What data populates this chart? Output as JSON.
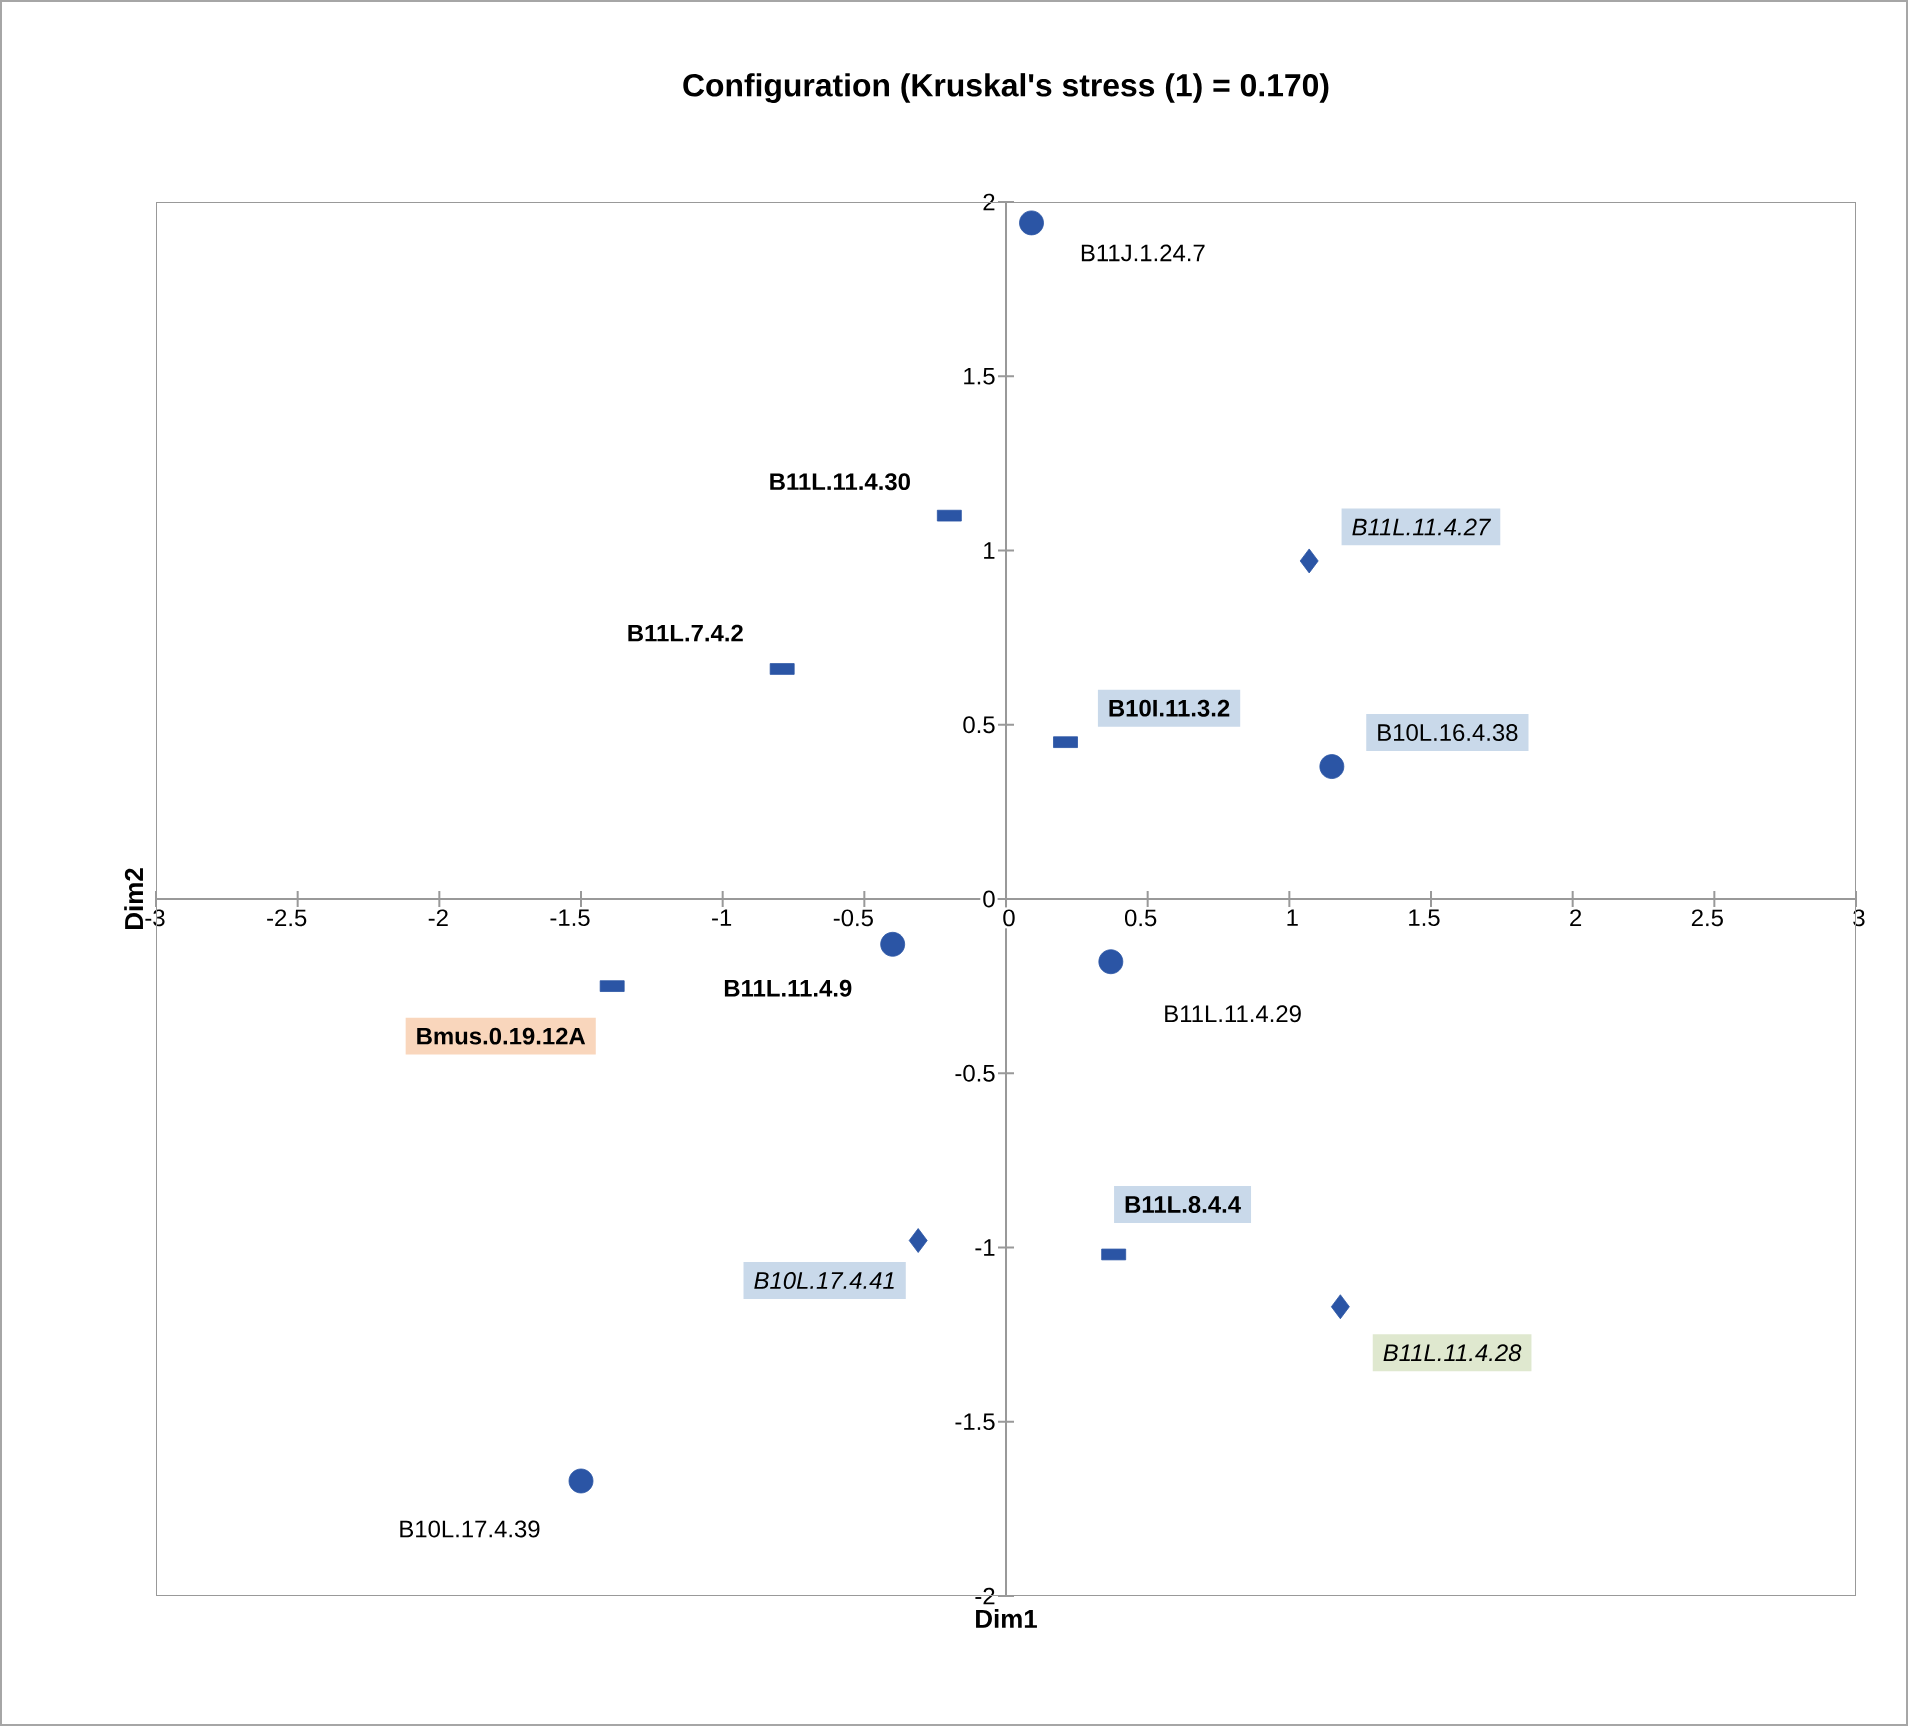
{
  "chart_data": {
    "type": "scatter",
    "title": "Configuration (Kruskal's stress (1) = 0.170)",
    "xlabel": "Dim1",
    "ylabel": "Dim2",
    "xlim": [
      -3,
      3
    ],
    "xticks": [
      -3,
      -2.5,
      -2,
      -1.5,
      -1,
      -0.5,
      0,
      0.5,
      1,
      1.5,
      2,
      2.5,
      3
    ],
    "ylim": [
      -2,
      2
    ],
    "yticks": [
      -2,
      -1.5,
      -1,
      -0.5,
      0,
      0.5,
      1,
      1.5,
      2
    ],
    "grid": false,
    "series": [
      {
        "marker": "circle",
        "color": "#2b55a5",
        "x": [
          0.09,
          1.15,
          -0.4,
          0.37,
          -1.5
        ],
        "values": [
          1.94,
          0.38,
          -0.13,
          -0.18,
          -1.67
        ]
      },
      {
        "marker": "square",
        "color": "#2b55a5",
        "x": [
          -0.2,
          -0.79,
          0.21,
          -1.39,
          0.38
        ],
        "values": [
          1.1,
          0.66,
          0.45,
          -0.25,
          -1.02
        ]
      },
      {
        "marker": "diamond",
        "color": "#2b55a5",
        "x": [
          1.07,
          -0.31,
          1.18
        ],
        "values": [
          0.97,
          -0.98,
          -1.17
        ]
      }
    ],
    "annotations": [
      {
        "text": "B11J.1.24.7",
        "x": 0.09,
        "y": 1.94
      },
      {
        "text": "B11L.11.4.30",
        "x": -0.2,
        "y": 1.1
      },
      {
        "text": "B11L.11.4.27",
        "x": 1.07,
        "y": 0.97
      },
      {
        "text": "B11L.7.4.2",
        "x": -0.79,
        "y": 0.66
      },
      {
        "text": "B10I.11.3.2",
        "x": 0.21,
        "y": 0.45
      },
      {
        "text": "B10L.16.4.38",
        "x": 1.15,
        "y": 0.38
      },
      {
        "text": "Bmus.0.19.12A",
        "x": -1.39,
        "y": -0.25
      },
      {
        "text": "B11L.11.4.9",
        "x": -0.4,
        "y": -0.13
      },
      {
        "text": "B11L.11.4.29",
        "x": 0.37,
        "y": -0.18
      },
      {
        "text": "B10L.17.4.41",
        "x": -0.31,
        "y": -0.98
      },
      {
        "text": "B11L.8.4.4",
        "x": 0.38,
        "y": -1.02
      },
      {
        "text": "B11L.11.4.28",
        "x": 1.18,
        "y": -1.17
      },
      {
        "text": "B10L.17.4.39",
        "x": -1.5,
        "y": -1.67
      }
    ]
  }
}
